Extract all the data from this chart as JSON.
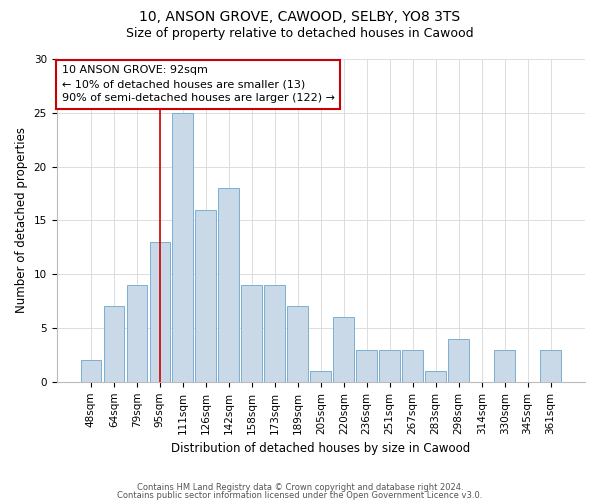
{
  "title1": "10, ANSON GROVE, CAWOOD, SELBY, YO8 3TS",
  "title2": "Size of property relative to detached houses in Cawood",
  "xlabel": "Distribution of detached houses by size in Cawood",
  "ylabel": "Number of detached properties",
  "categories": [
    "48sqm",
    "64sqm",
    "79sqm",
    "95sqm",
    "111sqm",
    "126sqm",
    "142sqm",
    "158sqm",
    "173sqm",
    "189sqm",
    "205sqm",
    "220sqm",
    "236sqm",
    "251sqm",
    "267sqm",
    "283sqm",
    "298sqm",
    "314sqm",
    "330sqm",
    "345sqm",
    "361sqm"
  ],
  "values": [
    2,
    7,
    9,
    13,
    25,
    16,
    18,
    9,
    9,
    7,
    1,
    6,
    3,
    3,
    3,
    1,
    4,
    0,
    3,
    0,
    3
  ],
  "bar_color": "#c9d9e8",
  "bar_edge_color": "#7bafd4",
  "vline_x": 3,
  "vline_color": "#cc0000",
  "annotation_line1": "10 ANSON GROVE: 92sqm",
  "annotation_line2": "← 10% of detached houses are smaller (13)",
  "annotation_line3": "90% of semi-detached houses are larger (122) →",
  "annotation_box_color": "#ffffff",
  "annotation_box_edge": "#cc0000",
  "ylim": [
    0,
    30
  ],
  "yticks": [
    0,
    5,
    10,
    15,
    20,
    25,
    30
  ],
  "footer1": "Contains HM Land Registry data © Crown copyright and database right 2024.",
  "footer2": "Contains public sector information licensed under the Open Government Licence v3.0.",
  "bg_color": "#ffffff",
  "grid_color": "#dddddd",
  "title_fontsize": 10,
  "subtitle_fontsize": 9,
  "ylabel_fontsize": 8.5,
  "xlabel_fontsize": 8.5,
  "tick_fontsize": 7.5,
  "annot_fontsize": 8,
  "footer_fontsize": 6
}
